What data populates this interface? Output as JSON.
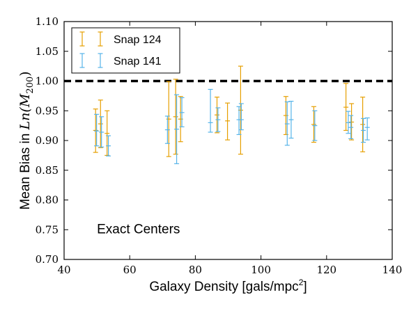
{
  "chart_data": {
    "type": "errorbar",
    "xlabel_prefix": "Galaxy Density [gals/mpc",
    "xlabel_sup": "2",
    "xlabel_suffix": "]",
    "ylabel_prefix": "Mean Bias in ",
    "ylabel_math": "Ln(M",
    "ylabel_sub": "200",
    "ylabel_close": ")",
    "xlim": [
      40,
      140
    ],
    "ylim": [
      0.7,
      1.1
    ],
    "xticks": [
      "40",
      "60",
      "80",
      "100",
      "120",
      "140"
    ],
    "yticks": [
      "0.70",
      "0.75",
      "0.80",
      "0.85",
      "0.90",
      "0.95",
      "1.00",
      "1.05",
      "1.10"
    ],
    "reference_line": {
      "y": 1.0,
      "style": "dashed",
      "color": "#000000"
    },
    "annotation": "Exact Centers",
    "legend_position": "top-left",
    "series": [
      {
        "name": "Snap 124",
        "color": "#e69f00",
        "points": [
          {
            "x": 49.6,
            "y": 0.917,
            "lo": 0.88,
            "hi": 0.953
          },
          {
            "x": 51.1,
            "y": 0.928,
            "lo": 0.888,
            "hi": 0.968
          },
          {
            "x": 53.1,
            "y": 0.912,
            "lo": 0.875,
            "hi": 0.95
          },
          {
            "x": 71.9,
            "y": 0.936,
            "lo": 0.873,
            "hi": 0.999
          },
          {
            "x": 74.0,
            "y": 0.94,
            "lo": 0.877,
            "hi": 1.003
          },
          {
            "x": 75.5,
            "y": 0.936,
            "lo": 0.898,
            "hi": 0.974
          },
          {
            "x": 86.6,
            "y": 0.943,
            "lo": 0.913,
            "hi": 0.973
          },
          {
            "x": 89.8,
            "y": 0.933,
            "lo": 0.901,
            "hi": 0.963
          },
          {
            "x": 93.8,
            "y": 0.951,
            "lo": 0.877,
            "hi": 1.025
          },
          {
            "x": 107.6,
            "y": 0.942,
            "lo": 0.91,
            "hi": 0.974
          },
          {
            "x": 116.1,
            "y": 0.927,
            "lo": 0.897,
            "hi": 0.957
          },
          {
            "x": 125.9,
            "y": 0.956,
            "lo": 0.917,
            "hi": 0.996
          },
          {
            "x": 127.6,
            "y": 0.931,
            "lo": 0.901,
            "hi": 0.962
          },
          {
            "x": 131.0,
            "y": 0.927,
            "lo": 0.881,
            "hi": 0.973
          }
        ]
      },
      {
        "name": "Snap 141",
        "color": "#56b4e9",
        "points": [
          {
            "x": 49.9,
            "y": 0.916,
            "lo": 0.891,
            "hi": 0.944
          },
          {
            "x": 51.4,
            "y": 0.914,
            "lo": 0.889,
            "hi": 0.94
          },
          {
            "x": 53.5,
            "y": 0.891,
            "lo": 0.874,
            "hi": 0.908
          },
          {
            "x": 71.5,
            "y": 0.918,
            "lo": 0.895,
            "hi": 0.941
          },
          {
            "x": 74.3,
            "y": 0.919,
            "lo": 0.861,
            "hi": 0.977
          },
          {
            "x": 75.9,
            "y": 0.947,
            "lo": 0.923,
            "hi": 0.972
          },
          {
            "x": 84.6,
            "y": 0.93,
            "lo": 0.914,
            "hi": 0.986
          },
          {
            "x": 86.9,
            "y": 0.935,
            "lo": 0.915,
            "hi": 0.955
          },
          {
            "x": 93.3,
            "y": 0.935,
            "lo": 0.91,
            "hi": 0.957
          },
          {
            "x": 94.0,
            "y": 0.935,
            "lo": 0.918,
            "hi": 0.962
          },
          {
            "x": 108.0,
            "y": 0.928,
            "lo": 0.892,
            "hi": 0.965
          },
          {
            "x": 109.2,
            "y": 0.935,
            "lo": 0.904,
            "hi": 0.966
          },
          {
            "x": 116.4,
            "y": 0.925,
            "lo": 0.9,
            "hi": 0.95
          },
          {
            "x": 126.6,
            "y": 0.93,
            "lo": 0.912,
            "hi": 0.949
          },
          {
            "x": 127.4,
            "y": 0.922,
            "lo": 0.903,
            "hi": 0.942
          },
          {
            "x": 131.2,
            "y": 0.917,
            "lo": 0.897,
            "hi": 0.937
          },
          {
            "x": 132.4,
            "y": 0.922,
            "lo": 0.901,
            "hi": 0.938
          }
        ]
      }
    ]
  }
}
